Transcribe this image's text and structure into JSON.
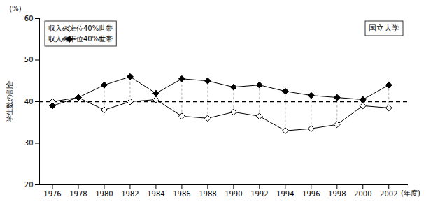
{
  "chart_data": {
    "type": "line",
    "title": "国立大学",
    "x": [
      1976,
      1978,
      1980,
      1982,
      1984,
      1986,
      1988,
      1990,
      1992,
      1994,
      1996,
      1998,
      2000,
      2002
    ],
    "series": [
      {
        "name": "収入の上位40%世帯",
        "color": "#000000",
        "marker": "diamond-open",
        "values": [
          40.0,
          41.0,
          38.0,
          40.0,
          40.5,
          36.5,
          36.0,
          37.5,
          36.5,
          33.0,
          33.5,
          34.5,
          39.0,
          38.5
        ]
      },
      {
        "name": "収入の下位40%世帯",
        "color": "#000000",
        "marker": "diamond",
        "values": [
          39.0,
          41.0,
          44.0,
          46.0,
          42.0,
          45.5,
          45.0,
          43.5,
          44.0,
          42.5,
          41.5,
          41.0,
          40.5,
          44.0
        ]
      }
    ],
    "xlim": [
      1975,
      2003.5
    ],
    "xticks": [
      1976,
      1978,
      1980,
      1982,
      1984,
      1986,
      1988,
      1990,
      1992,
      1994,
      1996,
      1998,
      2000,
      2002
    ],
    "ylim": [
      20,
      60
    ],
    "yticks": [
      20,
      30,
      40,
      50,
      60
    ],
    "ylabel": "学生数の割合",
    "xlabel": "(年度)",
    "annotations": [
      "(%)"
    ],
    "reference_line": 40.0,
    "legend": "upper left",
    "grid": false
  }
}
